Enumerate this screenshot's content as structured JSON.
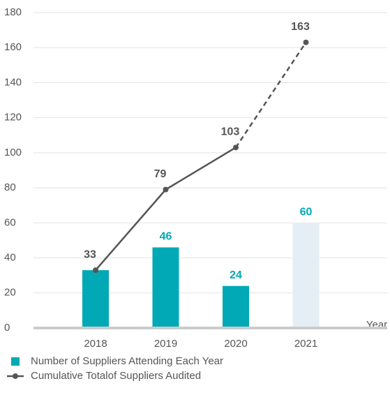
{
  "chart_data": {
    "type": "bar+line",
    "xlabel": "Year",
    "categories": [
      "2018",
      "2019",
      "2020",
      "2021"
    ],
    "projected": [
      false,
      false,
      false,
      true
    ],
    "series": [
      {
        "name": "Number of Suppliers Attending Each Year",
        "type": "bar",
        "color": "#00a9b5",
        "projected_color": "#e6eef5",
        "values": [
          33,
          46,
          24,
          60
        ]
      },
      {
        "name": "Cumulative Totalof Suppliers Audited",
        "type": "line",
        "color": "#555555",
        "values": [
          33,
          79,
          103,
          163
        ]
      }
    ],
    "ylim": [
      0,
      180
    ],
    "yticks": [
      0,
      20,
      40,
      60,
      80,
      100,
      120,
      140,
      160,
      180
    ],
    "grid": true
  }
}
